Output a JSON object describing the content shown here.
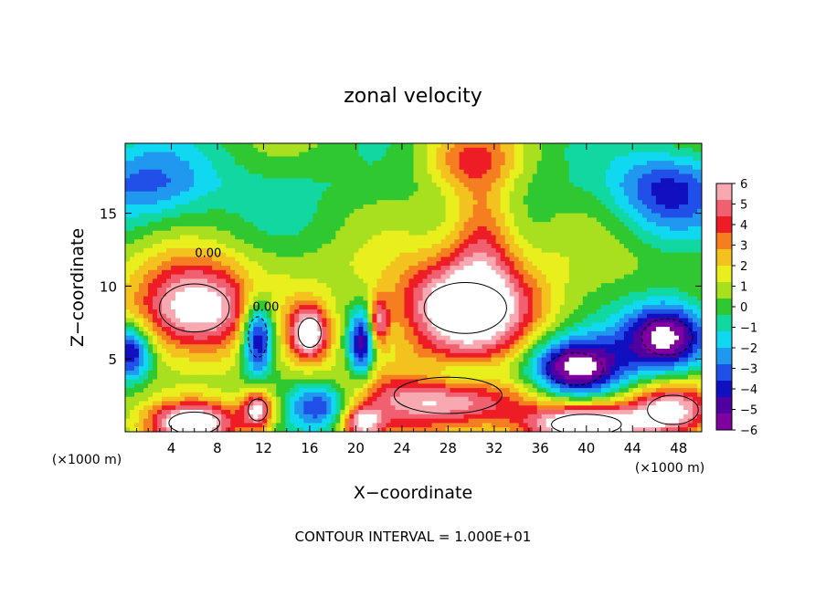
{
  "chart_data": {
    "type": "heatmap",
    "title": "zonal velocity",
    "xlabel": "X−coordinate",
    "ylabel": "Z−coordinate",
    "x_unit_left": "(×1000 m)",
    "x_unit_right": "(×1000 m)",
    "footer": "CONTOUR INTERVAL = 1.000E+01",
    "xlim": [
      0,
      50
    ],
    "ylim": [
      0,
      19.8
    ],
    "x_ticks": [
      4,
      8,
      12,
      16,
      20,
      24,
      28,
      32,
      36,
      40,
      44,
      48
    ],
    "x_tick_labels": [
      "4",
      "8",
      "12",
      "16",
      "20",
      "24",
      "28",
      "32",
      "36",
      "40",
      "44",
      "48"
    ],
    "y_ticks": [
      5,
      10,
      15
    ],
    "y_tick_labels": [
      "5",
      "10",
      "15"
    ],
    "colorbar": {
      "min": -6,
      "max": 6,
      "levels": [
        6,
        5,
        4,
        3,
        2,
        1,
        0,
        -1,
        -2,
        -3,
        -4,
        -5,
        -6
      ],
      "labels": [
        "6",
        "5",
        "4",
        "3",
        "2",
        "1",
        "0",
        "−1",
        "−2",
        "−3",
        "−4",
        "−5",
        "−6"
      ],
      "colors": [
        "#f7a8b0",
        "#f06070",
        "#ee1c24",
        "#f57f20",
        "#f4c21e",
        "#e8ef1c",
        "#a8e020",
        "#30c830",
        "#10d8a0",
        "#10d8f0",
        "#2098f0",
        "#2050e8",
        "#1010c0",
        "#5000a0",
        "#8000a0"
      ]
    },
    "contour_labels": [
      {
        "text": "0.00",
        "x": 7.2,
        "y": 12.0
      },
      {
        "text": "0.00",
        "x": 12.2,
        "y": 8.3
      }
    ],
    "features": [
      {
        "kind": "blob",
        "x": 30,
        "y": 18.5,
        "rx": 4.5,
        "ry": 2.5,
        "value": 3.3
      },
      {
        "kind": "blob",
        "x": 31,
        "y": 13.5,
        "rx": 3.0,
        "ry": 4.0,
        "value": 3.8
      },
      {
        "kind": "blob",
        "x": 29.5,
        "y": 8.5,
        "rx": 6.5,
        "ry": 3.5,
        "value": 7.5
      },
      {
        "kind": "blob",
        "x": 6,
        "y": 8.5,
        "rx": 5.5,
        "ry": 3.3,
        "value": 7.0
      },
      {
        "kind": "blob",
        "x": 16,
        "y": 6.8,
        "rx": 1.8,
        "ry": 2.0,
        "value": 6.5
      },
      {
        "kind": "blob",
        "x": 22,
        "y": 7.5,
        "rx": 0.9,
        "ry": 1.8,
        "value": 4.5
      },
      {
        "kind": "blob",
        "x": 28,
        "y": 2.5,
        "rx": 8.5,
        "ry": 2.5,
        "value": 6.5
      },
      {
        "kind": "blob",
        "x": 11.5,
        "y": 1.5,
        "rx": 1.5,
        "ry": 1.5,
        "value": 6.0
      },
      {
        "kind": "blob",
        "x": 20.5,
        "y": 0.6,
        "rx": 1.8,
        "ry": 1.2,
        "value": 5.0
      },
      {
        "kind": "blob",
        "x": 6,
        "y": 0.6,
        "rx": 4.0,
        "ry": 1.5,
        "value": 7.0
      },
      {
        "kind": "blob",
        "x": 40,
        "y": 0.5,
        "rx": 5.5,
        "ry": 1.4,
        "value": 7.0
      },
      {
        "kind": "blob",
        "x": 47.5,
        "y": 1.5,
        "rx": 4.0,
        "ry": 2.0,
        "value": 6.5
      },
      {
        "kind": "blob",
        "x": 11.5,
        "y": 6.5,
        "rx": 1.5,
        "ry": 2.8,
        "value": -6.5
      },
      {
        "kind": "blob",
        "x": 20.5,
        "y": 6.0,
        "rx": 1.2,
        "ry": 2.5,
        "value": -5.5
      },
      {
        "kind": "blob",
        "x": 39,
        "y": 4.3,
        "rx": 4.5,
        "ry": 2.2,
        "value": -7.5
      },
      {
        "kind": "blob",
        "x": 47,
        "y": 6.5,
        "rx": 4.0,
        "ry": 2.5,
        "value": -7.5
      },
      {
        "kind": "blob",
        "x": 29,
        "y": 3.8,
        "rx": 5.0,
        "ry": 1.5,
        "value": -4.5
      },
      {
        "kind": "blob",
        "x": 17,
        "y": 1.8,
        "rx": 3.0,
        "ry": 1.8,
        "value": -4.5
      },
      {
        "kind": "blob",
        "x": 0.5,
        "y": 5.5,
        "rx": 1.8,
        "ry": 2.0,
        "value": -5.5
      },
      {
        "kind": "blob",
        "x": 2,
        "y": 17,
        "rx": 6,
        "ry": 3,
        "value": -2.8
      },
      {
        "kind": "blob",
        "x": 47,
        "y": 16.5,
        "rx": 5,
        "ry": 3,
        "value": -3.5
      },
      {
        "kind": "blob",
        "x": 16,
        "y": 11,
        "rx": 6,
        "ry": 2,
        "value": 0.4
      }
    ]
  }
}
